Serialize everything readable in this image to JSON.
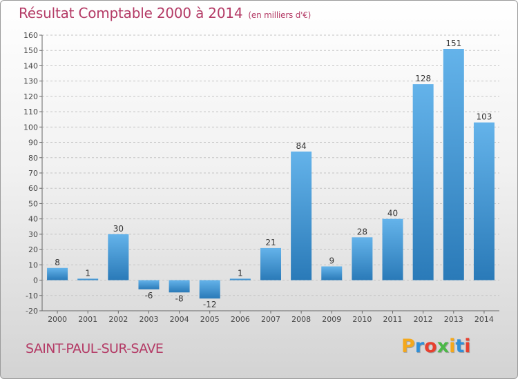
{
  "title": "Résultat Comptable 2000 à 2014",
  "subtitle": "(en milliers d'€)",
  "commune": "SAINT-PAUL-SUR-SAVE",
  "brand": {
    "letters": [
      "P",
      "r",
      "o",
      "x",
      "i",
      "t",
      "i"
    ],
    "colors": [
      "#f4a81c",
      "#2f8fd8",
      "#e7402f",
      "#4cb848",
      "#f4a81c",
      "#2f8fd8",
      "#e7402f"
    ]
  },
  "colors": {
    "bar_top": "#64b3ea",
    "bar_bottom": "#2a7ab8",
    "title": "#b43b66"
  },
  "chart_data": {
    "type": "bar",
    "categories": [
      "2000",
      "2001",
      "2002",
      "2003",
      "2004",
      "2005",
      "2006",
      "2007",
      "2008",
      "2009",
      "2010",
      "2011",
      "2012",
      "2013",
      "2014"
    ],
    "values": [
      8,
      1,
      30,
      -6,
      -8,
      -12,
      1,
      21,
      84,
      9,
      28,
      40,
      128,
      151,
      103
    ],
    "data_labels": [
      "8",
      "1",
      "30",
      "-6",
      "-8",
      "-12",
      "1",
      "21",
      "84",
      "9",
      "28",
      "40",
      "128",
      "151",
      "103"
    ],
    "ylim": [
      -20,
      160
    ],
    "yticks": [
      "-20",
      "-10",
      "0",
      "10",
      "20",
      "30",
      "40",
      "50",
      "60",
      "70",
      "80",
      "90",
      "100",
      "110",
      "120",
      "130",
      "140",
      "150",
      "160"
    ],
    "ytick_values": [
      -20,
      -10,
      0,
      10,
      20,
      30,
      40,
      50,
      60,
      70,
      80,
      90,
      100,
      110,
      120,
      130,
      140,
      150,
      160
    ],
    "grid": "horizontal dashed",
    "legend": "none"
  }
}
